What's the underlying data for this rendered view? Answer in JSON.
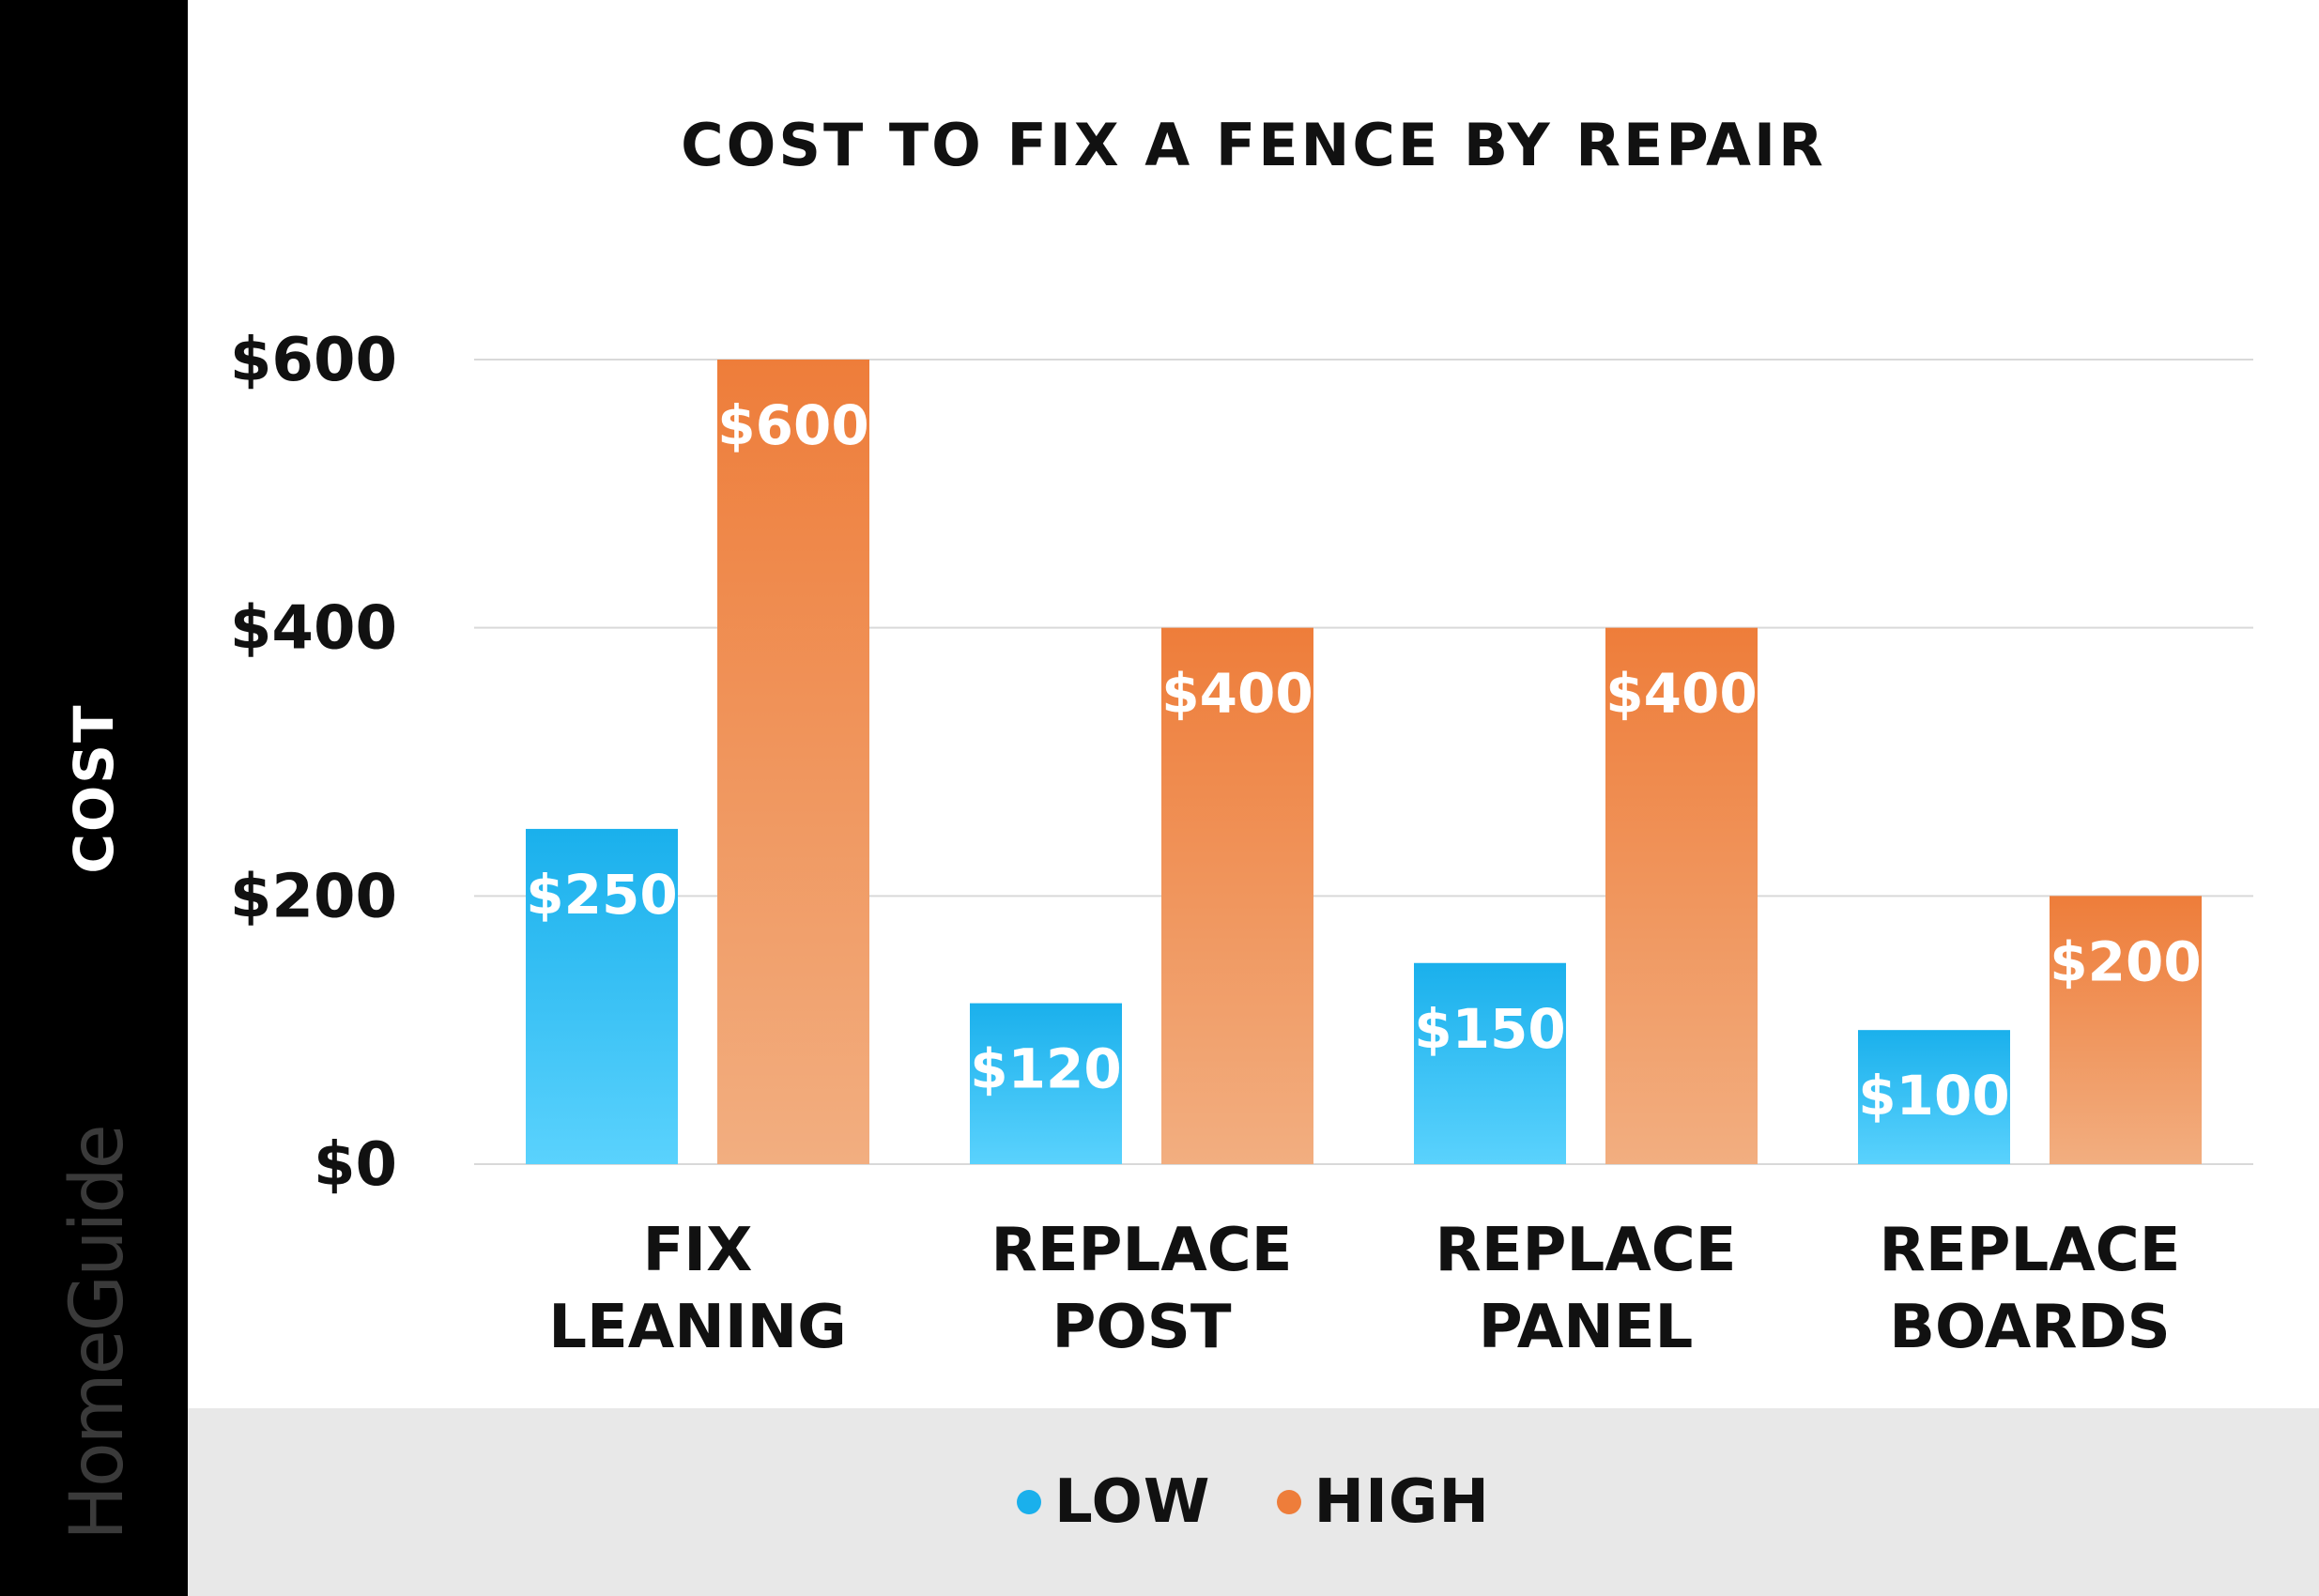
{
  "brand": {
    "name": "HomeGuide",
    "colors": {
      "background": "#ffffff",
      "left_band": "#000000",
      "legend_band": "#e8e8e8"
    }
  },
  "chart_data": {
    "type": "bar",
    "title": "COST TO FIX A FENCE BY REPAIR",
    "ylabel": "COST",
    "xlabel": "",
    "categories": [
      "FIX LEANING",
      "REPLACE POST",
      "REPLACE PANEL",
      "REPLACE BOARDS"
    ],
    "series": [
      {
        "name": "LOW",
        "values": [
          250,
          120,
          150,
          100
        ],
        "color": "#1ab0ec",
        "color_light": "#5ad2fd"
      },
      {
        "name": "HIGH",
        "values": [
          600,
          400,
          400,
          200
        ],
        "color": "#ee7d3a",
        "color_light": "#f2ae80"
      }
    ],
    "data_labels": [
      [
        "$250",
        "$120",
        "$150",
        "$100"
      ],
      [
        "$600",
        "$400",
        "$400",
        "$200"
      ]
    ],
    "ylim": [
      0,
      600
    ],
    "yticks": [
      0,
      200,
      400,
      600
    ],
    "ytick_labels": [
      "$0",
      "$200",
      "$400",
      "$600"
    ],
    "grid": true,
    "legend_position": "bottom"
  }
}
